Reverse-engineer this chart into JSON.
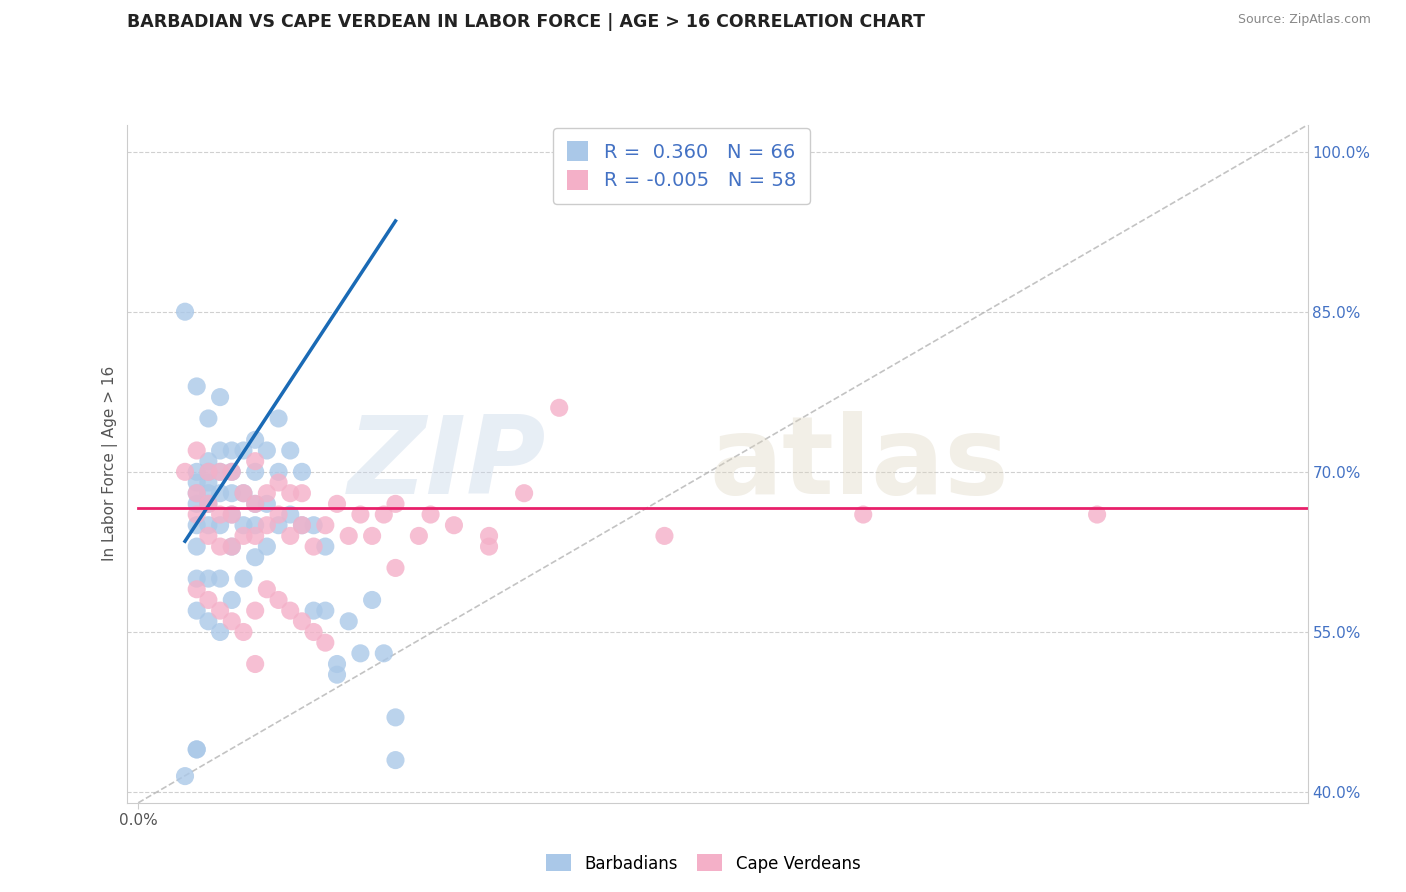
{
  "title": "BARBADIAN VS CAPE VERDEAN IN LABOR FORCE | AGE > 16 CORRELATION CHART",
  "source_text": "Source: ZipAtlas.com",
  "ylabel": "In Labor Force | Age > 16",
  "xlim": [
    -0.01,
    1.0
  ],
  "ylim": [
    0.39,
    1.025
  ],
  "blue_scatter_color": "#aac8e8",
  "pink_scatter_color": "#f4b0c8",
  "blue_line_color": "#1a6ab5",
  "pink_line_color": "#e8206a",
  "ref_line_color": "#aaaaaa",
  "grid_color": "#d0d0d0",
  "right_yticks": [
    1.0,
    0.85,
    0.7,
    0.55,
    0.4
  ],
  "right_yticklabels": [
    "100.0%",
    "85.0%",
    "70.0%",
    "55.0%",
    "40.0%"
  ],
  "legend1_label": "R =  0.360   N = 66",
  "legend2_label": "R = -0.005   N = 58",
  "bottom_legend1": "Barbadians",
  "bottom_legend2": "Cape Verdeans",
  "barbadian_x": [
    0.04,
    0.05,
    0.05,
    0.05,
    0.05,
    0.05,
    0.05,
    0.05,
    0.05,
    0.05,
    0.05,
    0.06,
    0.06,
    0.06,
    0.06,
    0.06,
    0.06,
    0.06,
    0.06,
    0.07,
    0.07,
    0.07,
    0.07,
    0.07,
    0.07,
    0.08,
    0.08,
    0.08,
    0.08,
    0.08,
    0.08,
    0.09,
    0.09,
    0.09,
    0.09,
    0.1,
    0.1,
    0.1,
    0.1,
    0.1,
    0.11,
    0.11,
    0.11,
    0.12,
    0.12,
    0.12,
    0.13,
    0.13,
    0.14,
    0.14,
    0.15,
    0.15,
    0.16,
    0.16,
    0.17,
    0.18,
    0.19,
    0.2,
    0.21,
    0.22,
    0.04,
    0.05,
    0.06,
    0.07,
    0.17,
    0.22
  ],
  "barbadian_y": [
    0.415,
    0.44,
    0.44,
    0.57,
    0.6,
    0.63,
    0.65,
    0.67,
    0.68,
    0.69,
    0.7,
    0.56,
    0.6,
    0.65,
    0.67,
    0.68,
    0.69,
    0.7,
    0.71,
    0.55,
    0.6,
    0.65,
    0.68,
    0.7,
    0.72,
    0.58,
    0.63,
    0.66,
    0.68,
    0.7,
    0.72,
    0.6,
    0.65,
    0.68,
    0.72,
    0.62,
    0.65,
    0.67,
    0.7,
    0.73,
    0.63,
    0.67,
    0.72,
    0.65,
    0.7,
    0.75,
    0.66,
    0.72,
    0.65,
    0.7,
    0.57,
    0.65,
    0.57,
    0.63,
    0.52,
    0.56,
    0.53,
    0.58,
    0.53,
    0.43,
    0.85,
    0.78,
    0.75,
    0.77,
    0.51,
    0.47
  ],
  "capeverdean_x": [
    0.04,
    0.05,
    0.05,
    0.05,
    0.06,
    0.06,
    0.06,
    0.07,
    0.07,
    0.07,
    0.08,
    0.08,
    0.08,
    0.09,
    0.09,
    0.1,
    0.1,
    0.1,
    0.11,
    0.11,
    0.12,
    0.12,
    0.13,
    0.13,
    0.14,
    0.14,
    0.15,
    0.16,
    0.17,
    0.18,
    0.19,
    0.2,
    0.21,
    0.22,
    0.24,
    0.25,
    0.27,
    0.3,
    0.33,
    0.36,
    0.05,
    0.06,
    0.07,
    0.08,
    0.09,
    0.1,
    0.11,
    0.12,
    0.13,
    0.14,
    0.15,
    0.16,
    0.22,
    0.3,
    0.45,
    0.62,
    0.82,
    0.1
  ],
  "capeverdean_y": [
    0.7,
    0.66,
    0.68,
    0.72,
    0.64,
    0.67,
    0.7,
    0.63,
    0.66,
    0.7,
    0.63,
    0.66,
    0.7,
    0.64,
    0.68,
    0.64,
    0.67,
    0.71,
    0.65,
    0.68,
    0.66,
    0.69,
    0.64,
    0.68,
    0.65,
    0.68,
    0.63,
    0.65,
    0.67,
    0.64,
    0.66,
    0.64,
    0.66,
    0.67,
    0.64,
    0.66,
    0.65,
    0.63,
    0.68,
    0.76,
    0.59,
    0.58,
    0.57,
    0.56,
    0.55,
    0.57,
    0.59,
    0.58,
    0.57,
    0.56,
    0.55,
    0.54,
    0.61,
    0.64,
    0.64,
    0.66,
    0.66,
    0.52
  ]
}
